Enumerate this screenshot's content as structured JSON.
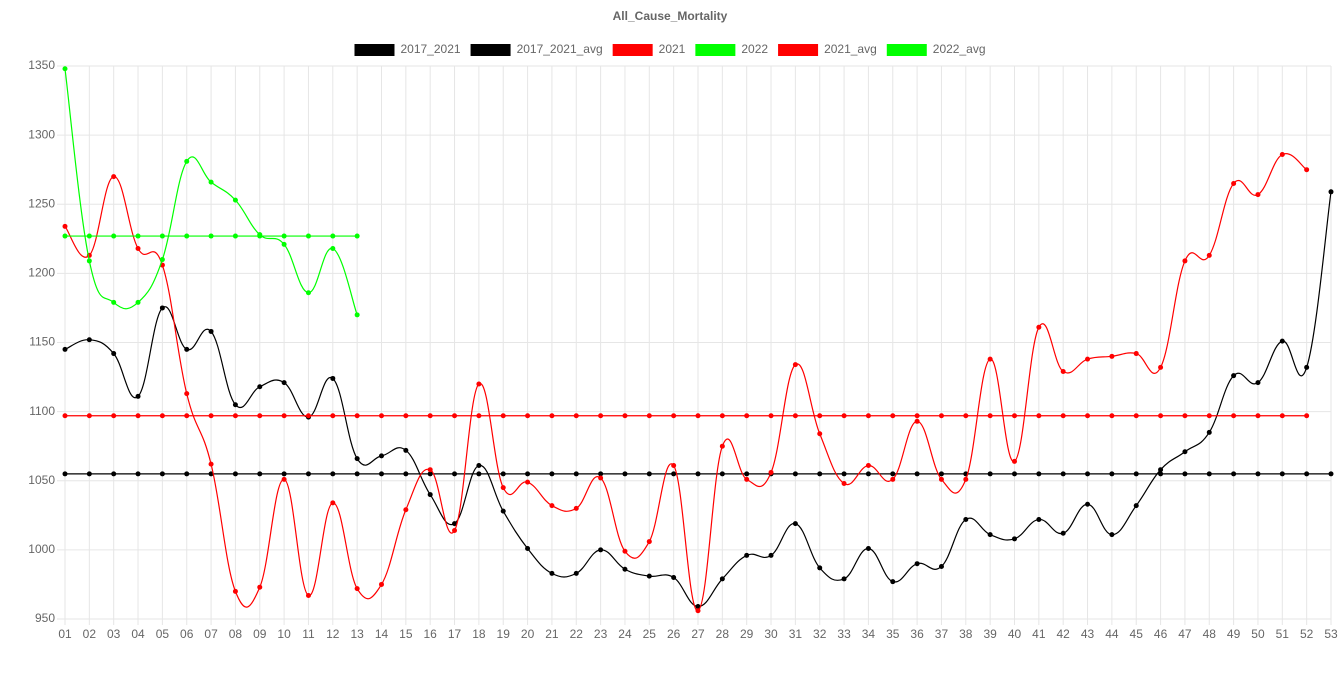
{
  "chart_data": {
    "type": "line",
    "title": "All_Cause_Mortality",
    "categories": [
      "01",
      "02",
      "03",
      "04",
      "05",
      "06",
      "07",
      "08",
      "09",
      "10",
      "11",
      "12",
      "13",
      "14",
      "15",
      "16",
      "17",
      "18",
      "19",
      "20",
      "21",
      "22",
      "23",
      "24",
      "25",
      "26",
      "27",
      "28",
      "29",
      "30",
      "31",
      "32",
      "33",
      "34",
      "35",
      "36",
      "37",
      "38",
      "39",
      "40",
      "41",
      "42",
      "43",
      "44",
      "45",
      "46",
      "47",
      "48",
      "49",
      "50",
      "51",
      "52",
      "53"
    ],
    "series": [
      {
        "name": "2017_2021",
        "color": "#000000",
        "values": [
          1145,
          1152,
          1142,
          1111,
          1175,
          1145,
          1158,
          1105,
          1118,
          1121,
          1096,
          1124,
          1066,
          1068,
          1072,
          1040,
          1019,
          1061,
          1028,
          1001,
          983,
          983,
          1000,
          986,
          981,
          980,
          959,
          979,
          996,
          996,
          1019,
          987,
          979,
          1001,
          977,
          990,
          988,
          1022,
          1011,
          1008,
          1022,
          1012,
          1033,
          1011,
          1032,
          1058,
          1071,
          1085,
          1126,
          1121,
          1151,
          1132,
          1259
        ]
      },
      {
        "name": "2017_2021_avg",
        "color": "#000000",
        "values": [
          1055,
          1055,
          1055,
          1055,
          1055,
          1055,
          1055,
          1055,
          1055,
          1055,
          1055,
          1055,
          1055,
          1055,
          1055,
          1055,
          1055,
          1055,
          1055,
          1055,
          1055,
          1055,
          1055,
          1055,
          1055,
          1055,
          1055,
          1055,
          1055,
          1055,
          1055,
          1055,
          1055,
          1055,
          1055,
          1055,
          1055,
          1055,
          1055,
          1055,
          1055,
          1055,
          1055,
          1055,
          1055,
          1055,
          1055,
          1055,
          1055,
          1055,
          1055,
          1055,
          1055
        ]
      },
      {
        "name": "2021",
        "color": "#ff0000",
        "values": [
          1234,
          1213,
          1270,
          1218,
          1206,
          1113,
          1062,
          970,
          973,
          1051,
          967,
          1034,
          972,
          975,
          1029,
          1058,
          1014,
          1120,
          1045,
          1049,
          1032,
          1030,
          1052,
          999,
          1006,
          1061,
          956,
          1075,
          1051,
          1056,
          1134,
          1084,
          1048,
          1061,
          1051,
          1093,
          1051,
          1051,
          1138,
          1064,
          1161,
          1129,
          1138,
          1140,
          1142,
          1132,
          1209,
          1213,
          1265,
          1257,
          1286,
          1275,
          null
        ]
      },
      {
        "name": "2022",
        "color": "#00ff00",
        "values": [
          1348,
          1209,
          1179,
          1179,
          1210,
          1281,
          1266,
          1253,
          1228,
          1221,
          1186,
          1218,
          1170,
          null,
          null,
          null,
          null,
          null,
          null,
          null,
          null,
          null,
          null,
          null,
          null,
          null,
          null,
          null,
          null,
          null,
          null,
          null,
          null,
          null,
          null,
          null,
          null,
          null,
          null,
          null,
          null,
          null,
          null,
          null,
          null,
          null,
          null,
          null,
          null,
          null,
          null,
          null,
          null
        ]
      },
      {
        "name": "2021_avg",
        "color": "#ff0000",
        "values": [
          1097,
          1097,
          1097,
          1097,
          1097,
          1097,
          1097,
          1097,
          1097,
          1097,
          1097,
          1097,
          1097,
          1097,
          1097,
          1097,
          1097,
          1097,
          1097,
          1097,
          1097,
          1097,
          1097,
          1097,
          1097,
          1097,
          1097,
          1097,
          1097,
          1097,
          1097,
          1097,
          1097,
          1097,
          1097,
          1097,
          1097,
          1097,
          1097,
          1097,
          1097,
          1097,
          1097,
          1097,
          1097,
          1097,
          1097,
          1097,
          1097,
          1097,
          1097,
          1097,
          null
        ]
      },
      {
        "name": "2022_avg",
        "color": "#00ff00",
        "values": [
          1227,
          1227,
          1227,
          1227,
          1227,
          1227,
          1227,
          1227,
          1227,
          1227,
          1227,
          1227,
          1227,
          null,
          null,
          null,
          null,
          null,
          null,
          null,
          null,
          null,
          null,
          null,
          null,
          null,
          null,
          null,
          null,
          null,
          null,
          null,
          null,
          null,
          null,
          null,
          null,
          null,
          null,
          null,
          null,
          null,
          null,
          null,
          null,
          null,
          null,
          null,
          null,
          null,
          null,
          null,
          null
        ]
      }
    ],
    "ylim": [
      950,
      1350
    ],
    "yticks": [
      950,
      1000,
      1050,
      1100,
      1150,
      1200,
      1250,
      1300,
      1350
    ],
    "grid": true,
    "legend": "top"
  }
}
